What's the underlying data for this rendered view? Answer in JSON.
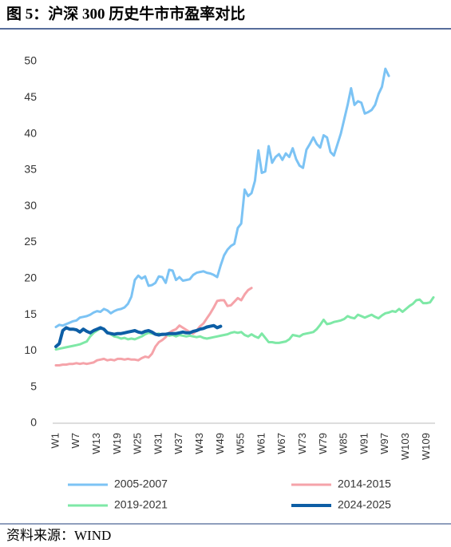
{
  "chart_data": {
    "type": "line",
    "title": "图 5：沪深 300 历史牛市市盈率对比",
    "source": "资料来源：WIND",
    "categories": [
      "W1",
      null,
      null,
      null,
      null,
      null,
      "W7",
      null,
      null,
      null,
      null,
      null,
      "W13",
      null,
      null,
      null,
      null,
      null,
      "W19",
      null,
      null,
      null,
      null,
      null,
      "W25",
      null,
      null,
      null,
      null,
      null,
      "W31",
      null,
      null,
      null,
      null,
      null,
      "W37",
      null,
      null,
      null,
      null,
      null,
      "W43",
      null,
      null,
      null,
      null,
      null,
      "W49",
      null,
      null,
      null,
      null,
      null,
      "W55",
      null,
      null,
      null,
      null,
      null,
      "W61",
      null,
      null,
      null,
      null,
      null,
      "W67",
      null,
      null,
      null,
      null,
      null,
      "W73",
      null,
      null,
      null,
      null,
      null,
      "W79",
      null,
      null,
      null,
      null,
      null,
      "W85",
      null,
      null,
      null,
      null,
      null,
      "W91",
      null,
      null,
      null,
      null,
      null,
      "W97",
      null,
      null,
      null,
      null,
      null,
      "W103",
      null,
      null,
      null,
      null,
      null,
      "W109",
      null,
      null
    ],
    "ylim": [
      0,
      50
    ],
    "yticks": [
      0,
      5,
      10,
      15,
      20,
      25,
      30,
      35,
      40,
      45,
      50
    ],
    "grid": false,
    "legend": "bottom",
    "series": [
      {
        "name": "2005-2007",
        "color": "#7cc3f4",
        "values": [
          13.3,
          13.6,
          13.5,
          13.7,
          13.9,
          14.1,
          14.2,
          14.6,
          14.7,
          14.8,
          15.0,
          15.3,
          15.5,
          15.4,
          15.8,
          15.6,
          15.2,
          15.5,
          15.7,
          15.8,
          16.0,
          16.5,
          17.5,
          19.8,
          20.4,
          20.0,
          20.3,
          19.0,
          19.1,
          19.4,
          20.3,
          20.2,
          19.4,
          21.2,
          21.1,
          19.8,
          20.2,
          19.7,
          19.8,
          19.9,
          20.5,
          20.8,
          20.9,
          21.0,
          20.8,
          20.7,
          20.5,
          20.2,
          21.8,
          23.2,
          24.0,
          24.5,
          24.8,
          27.0,
          27.6,
          32.3,
          31.4,
          31.8,
          33.5,
          37.7,
          34.6,
          34.8,
          38.3,
          36.0,
          36.8,
          37.2,
          36.4,
          37.3,
          36.8,
          38.0,
          36.5,
          35.6,
          35.3,
          37.8,
          38.6,
          39.5,
          38.6,
          38.1,
          39.8,
          39.5,
          37.5,
          37.0,
          38.5,
          40.0,
          42.0,
          44.0,
          46.3,
          44.0,
          44.5,
          44.3,
          42.8,
          43.0,
          43.3,
          44.0,
          45.5,
          46.5,
          49.0,
          48.0,
          null,
          null,
          null,
          null,
          null,
          null,
          null,
          null,
          null,
          null,
          null,
          null,
          null
        ]
      },
      {
        "name": "2014-2015",
        "color": "#f5a3a9",
        "values": [
          8.0,
          8.0,
          8.1,
          8.1,
          8.2,
          8.2,
          8.3,
          8.2,
          8.3,
          8.2,
          8.3,
          8.4,
          8.7,
          8.8,
          8.9,
          8.7,
          8.8,
          8.7,
          8.9,
          8.9,
          8.8,
          8.9,
          8.8,
          8.8,
          8.7,
          9.0,
          9.2,
          9.1,
          9.6,
          10.6,
          11.2,
          11.5,
          11.9,
          12.5,
          12.8,
          13.0,
          13.5,
          13.2,
          12.9,
          12.6,
          12.4,
          12.8,
          13.4,
          13.8,
          14.5,
          15.2,
          16.0,
          16.9,
          17.0,
          17.0,
          16.2,
          16.3,
          16.8,
          17.3,
          17.0,
          17.8,
          18.4,
          18.7,
          null,
          null,
          null,
          null,
          null,
          null,
          null,
          null,
          null,
          null,
          null,
          null,
          null,
          null,
          null,
          null,
          null,
          null,
          null,
          null,
          null,
          null,
          null,
          null,
          null,
          null,
          null,
          null,
          null,
          null,
          null,
          null,
          null,
          null,
          null,
          null,
          null,
          null,
          null,
          null,
          null,
          null,
          null,
          null,
          null,
          null,
          null,
          null,
          null,
          null,
          null,
          null,
          null
        ]
      },
      {
        "name": "2019-2021",
        "color": "#7ee8a6",
        "values": [
          10.2,
          10.3,
          10.4,
          10.5,
          10.6,
          10.7,
          10.8,
          10.9,
          11.1,
          11.3,
          12.0,
          12.5,
          12.8,
          13.1,
          13.0,
          12.6,
          12.3,
          12.0,
          11.9,
          11.7,
          11.8,
          11.6,
          11.7,
          11.6,
          11.8,
          12.0,
          12.3,
          12.5,
          12.4,
          12.3,
          12.4,
          12.2,
          12.3,
          12.1,
          12.2,
          12.0,
          12.2,
          12.1,
          12.0,
          12.1,
          12.0,
          11.9,
          12.0,
          11.8,
          11.7,
          11.8,
          11.9,
          12.0,
          12.1,
          12.2,
          12.3,
          12.5,
          12.6,
          12.5,
          12.6,
          12.2,
          12.0,
          12.3,
          12.0,
          11.8,
          12.4,
          11.8,
          11.2,
          11.2,
          11.1,
          11.1,
          11.2,
          11.3,
          11.6,
          12.2,
          12.1,
          12.0,
          12.3,
          12.4,
          12.5,
          12.6,
          13.0,
          13.6,
          14.3,
          13.7,
          13.8,
          14.0,
          14.1,
          14.2,
          14.4,
          14.8,
          14.6,
          14.5,
          15.0,
          14.8,
          14.6,
          14.8,
          15.0,
          14.7,
          14.5,
          14.9,
          15.2,
          15.3,
          15.5,
          15.4,
          15.8,
          15.4,
          15.8,
          16.2,
          16.5,
          17.0,
          17.1,
          16.6,
          16.6,
          16.7,
          17.4
        ]
      },
      {
        "name": "2024-2025",
        "color": "#0d5ea5",
        "values": [
          10.6,
          11.0,
          12.8,
          13.2,
          13.0,
          13.0,
          12.9,
          12.6,
          13.0,
          12.7,
          12.5,
          12.8,
          13.0,
          13.2,
          13.0,
          12.5,
          12.4,
          12.3,
          12.4,
          12.4,
          12.5,
          12.6,
          12.7,
          12.8,
          12.6,
          12.5,
          12.7,
          12.8,
          12.6,
          12.3,
          12.2,
          12.3,
          12.3,
          12.4,
          12.4,
          12.4,
          12.5,
          12.6,
          12.5,
          12.5,
          12.7,
          12.8,
          13.0,
          13.1,
          13.3,
          13.4,
          13.5,
          13.2,
          13.4,
          null,
          null,
          null,
          null,
          null,
          null,
          null,
          null,
          null,
          null,
          null,
          null,
          null,
          null,
          null,
          null,
          null,
          null,
          null,
          null,
          null,
          null,
          null,
          null,
          null,
          null,
          null,
          null,
          null,
          null,
          null,
          null,
          null,
          null,
          null,
          null,
          null,
          null,
          null,
          null,
          null,
          null,
          null,
          null,
          null,
          null,
          null,
          null,
          null,
          null,
          null,
          null,
          null,
          null,
          null,
          null,
          null,
          null,
          null,
          null,
          null,
          null
        ]
      }
    ]
  }
}
